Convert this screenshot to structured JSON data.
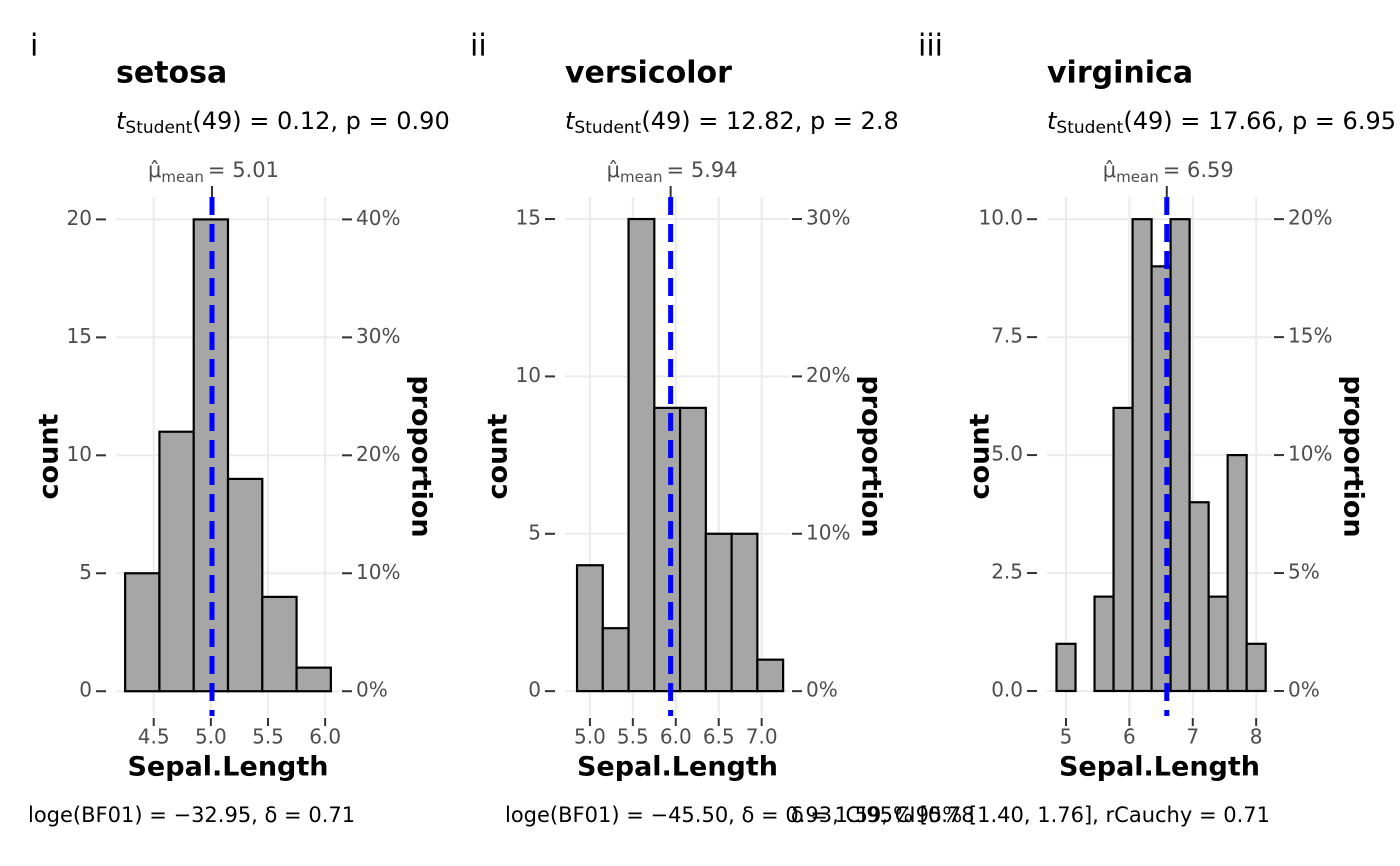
{
  "chart_data": [
    {
      "type": "histogram",
      "panel": "i",
      "title": "setosa",
      "subtitle": {
        "t": "t",
        "sub": "Student",
        "rest": "(49) = 0.12, p = 0.90"
      },
      "bins": [
        4.25,
        4.55,
        4.85,
        5.15,
        5.45,
        5.75,
        6.05
      ],
      "values": [
        5,
        11,
        20,
        9,
        4,
        1
      ],
      "color": "#a6a6a6",
      "mean": 5.01,
      "mean_color": "#0000ff",
      "mean_label": {
        "symbol": "μ̂",
        "sub": "mean",
        "text": "= 5.01"
      },
      "xlim": [
        4.17,
        6.13
      ],
      "ylim": [
        -1.05,
        20.95
      ],
      "xticks": [
        {
          "value": 4.5,
          "label": "4.5"
        },
        {
          "value": 5,
          "label": "5.0"
        },
        {
          "value": 5.5,
          "label": "5.5"
        },
        {
          "value": 6,
          "label": "6.0"
        }
      ],
      "yticks": [
        0,
        5,
        10,
        15,
        20
      ],
      "y2lim": [
        -0.021,
        0.419
      ],
      "y2ticks": [
        {
          "value": 0,
          "label": "0%"
        },
        {
          "value": 0.1,
          "label": "10%"
        },
        {
          "value": 0.2,
          "label": "20%"
        },
        {
          "value": 0.3,
          "label": "30%"
        },
        {
          "value": 0.4,
          "label": "40%"
        }
      ],
      "xlabel": "Sepal.Length",
      "ylabel": "count",
      "y2label": "proportion",
      "grid": true,
      "caption": "loge(BF01) = −32.95, δ = 0.71"
    },
    {
      "type": "histogram",
      "panel": "ii",
      "title": "versicolor",
      "subtitle": {
        "t": "t",
        "sub": "Student",
        "rest": "(49) = 12.82, p = 2.8"
      },
      "bins": [
        4.85,
        5.15,
        5.45,
        5.75,
        6.05,
        6.35,
        6.65,
        6.95,
        7.25
      ],
      "values": [
        4,
        2,
        15,
        9,
        9,
        5,
        5,
        1
      ],
      "color": "#a6a6a6",
      "mean": 5.94,
      "mean_color": "#0000ff",
      "mean_label": {
        "symbol": "μ̂",
        "sub": "mean",
        "text": "= 5.94"
      },
      "xlim": [
        4.71,
        7.33
      ],
      "ylim": [
        -0.79,
        15.7
      ],
      "xticks": [
        {
          "value": 5,
          "label": "5.0"
        },
        {
          "value": 5.5,
          "label": "5.5"
        },
        {
          "value": 6,
          "label": "6.0"
        },
        {
          "value": 6.5,
          "label": "6.5"
        },
        {
          "value": 7,
          "label": "7.0"
        }
      ],
      "yticks": [
        0,
        5,
        10,
        15
      ],
      "y2lim": [
        -0.0158,
        0.314
      ],
      "y2ticks": [
        {
          "value": 0,
          "label": "0%"
        },
        {
          "value": 0.1,
          "label": "10%"
        },
        {
          "value": 0.2,
          "label": "20%"
        },
        {
          "value": 0.3,
          "label": "30%"
        }
      ],
      "xlabel": "Sepal.Length",
      "ylabel": "count",
      "y2label": "proportion",
      "grid": true,
      "caption": "loge(BF01) = −45.50, δ = 0.93, CI95% [0.78"
    },
    {
      "type": "histogram",
      "panel": "iii",
      "title": "virginica",
      "subtitle": {
        "t": "t",
        "sub": "Student",
        "rest": "(49) = 17.66, p = 6.95"
      },
      "bins": [
        4.85,
        5.15,
        5.45,
        5.75,
        6.05,
        6.35,
        6.65,
        6.95,
        7.25,
        7.55,
        7.85,
        8.15
      ],
      "values": [
        1,
        0,
        2,
        6,
        10,
        9,
        10,
        4,
        2,
        5,
        1
      ],
      "color": "#a6a6a6",
      "mean": 6.59,
      "mean_color": "#0000ff",
      "mean_label": {
        "symbol": "μ̂",
        "sub": "mean",
        "text": "= 6.59"
      },
      "xlim": [
        4.7,
        8.25
      ],
      "ylim": [
        -0.53,
        10.47
      ],
      "xticks": [
        5,
        6,
        7,
        8
      ],
      "yticks": [
        {
          "value": 0,
          "label": "0.0"
        },
        {
          "value": 2.5,
          "label": "2.5"
        },
        {
          "value": 5,
          "label": "5.0"
        },
        {
          "value": 7.5,
          "label": "7.5"
        },
        {
          "value": 10,
          "label": "10.0"
        }
      ],
      "y2lim": [
        -0.0106,
        0.2094
      ],
      "y2ticks": [
        {
          "value": 0,
          "label": "0%"
        },
        {
          "value": 0.05,
          "label": "5%"
        },
        {
          "value": 0.1,
          "label": "10%"
        },
        {
          "value": 0.15,
          "label": "15%"
        },
        {
          "value": 0.2,
          "label": "20%"
        }
      ],
      "xlabel": "Sepal.Length",
      "ylabel": "count",
      "y2label": "proportion",
      "grid": true,
      "caption": "δ = 1.59, CI95% [1.40, 1.76], rCauchy = 0.71"
    }
  ]
}
